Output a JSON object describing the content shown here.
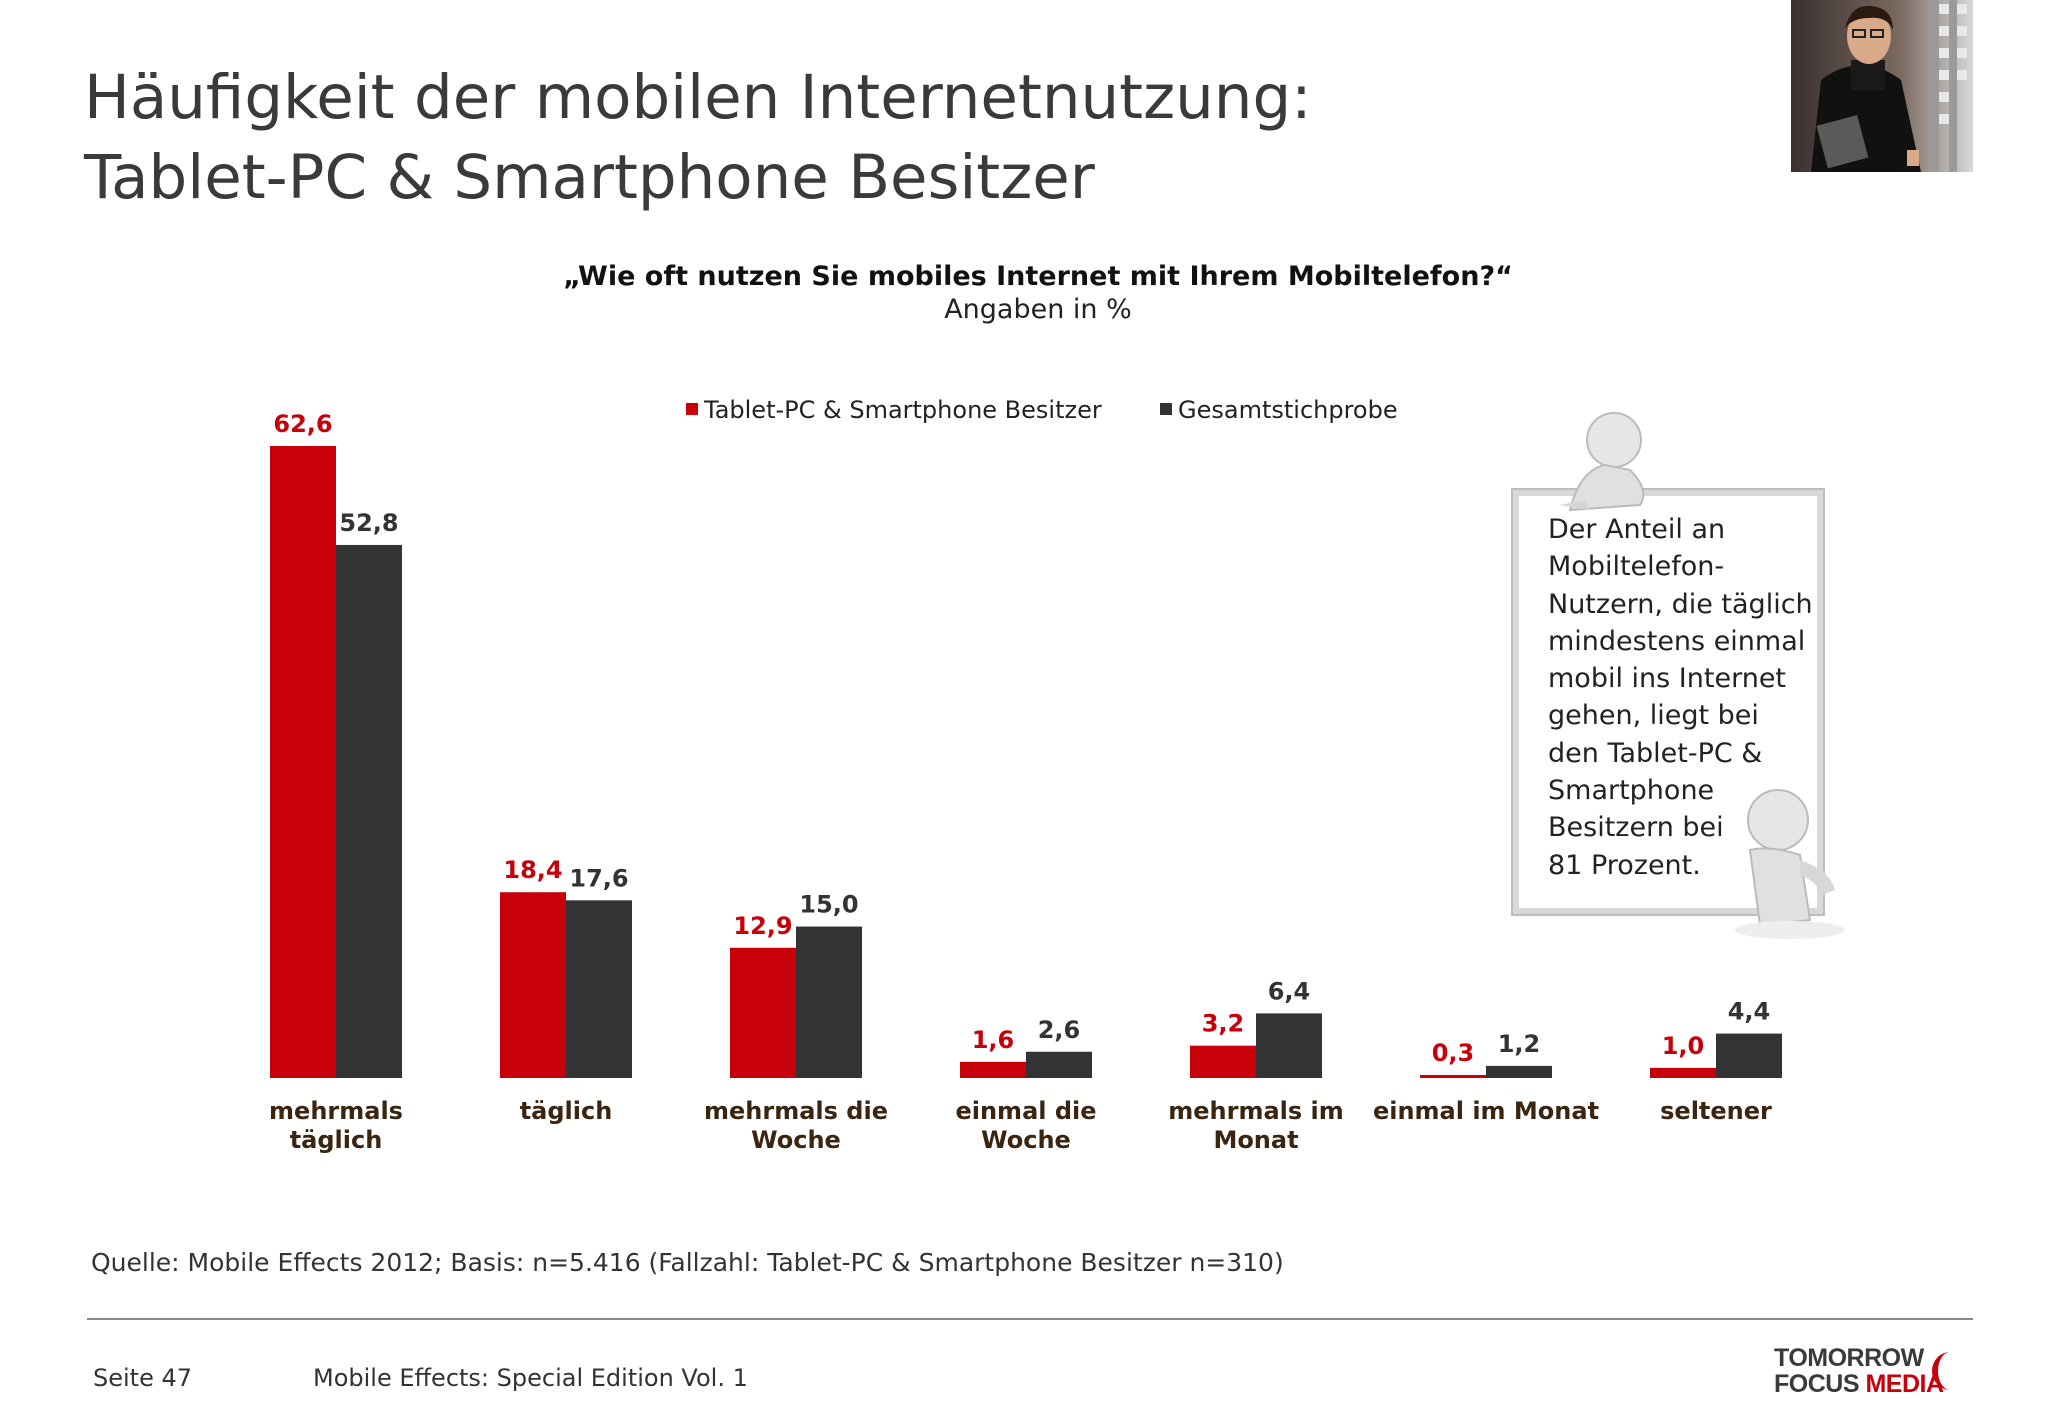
{
  "title": {
    "line1": "Häufigkeit der mobilen Internetnutzung:",
    "line2": "Tablet-PC & Smartphone Besitzer"
  },
  "question": "„Wie oft nutzen Sie mobiles Internet mit Ihrem Mobiltelefon?“",
  "unit_note": "Angaben in %",
  "chart_data": {
    "type": "bar",
    "categories": [
      [
        "mehrmals",
        "täglich"
      ],
      [
        "täglich"
      ],
      [
        "mehrmals die",
        "Woche"
      ],
      [
        "einmal die",
        "Woche"
      ],
      [
        "mehrmals im",
        "Monat"
      ],
      [
        "einmal im Monat"
      ],
      [
        "seltener"
      ]
    ],
    "series": [
      {
        "name": "Tablet-PC & Smartphone Besitzer",
        "values": [
          62.6,
          18.4,
          12.9,
          1.6,
          3.2,
          0.3,
          1.0
        ],
        "labels": [
          "62,6",
          "18,4",
          "12,9",
          "1,6",
          "3,2",
          "0,3",
          "1,0"
        ],
        "color": "#c8000a",
        "label_color": "#c8000a"
      },
      {
        "name": "Gesamtstichprobe",
        "values": [
          52.8,
          17.6,
          15.0,
          2.6,
          6.4,
          1.2,
          4.4
        ],
        "labels": [
          "52,8",
          "17,6",
          "15,0",
          "2,6",
          "6,4",
          "1,2",
          "4,4"
        ],
        "color": "#333336",
        "label_color": "#333333"
      }
    ],
    "ylim": [
      0,
      62.6
    ],
    "legend_position": "top-center",
    "grid": false,
    "category_label_color": "#3b2410"
  },
  "callout": {
    "lines": [
      "Der Anteil an",
      "Mobiltelefon-",
      "Nutzern, die täglich",
      "mindestens einmal",
      "mobil ins Internet",
      "gehen, liegt bei",
      "den Tablet-PC &",
      "Smartphone",
      "Besitzern bei",
      "81 Prozent."
    ]
  },
  "source": "Quelle: Mobile Effects 2012; Basis: n=5.416 (Fallzahl: Tablet-PC & Smartphone Besitzer n=310)",
  "footer": {
    "page": "Seite 47",
    "edition": "Mobile Effects: Special Edition Vol. 1",
    "logo_line1": "TOMORROW",
    "logo_line2a": "FOCUS ",
    "logo_line2b": "MEDIA"
  },
  "colors": {
    "accent": "#c8000a",
    "dark": "#333336"
  },
  "icons": {
    "photo": "man-with-tablet-photo",
    "figure": "3d-figure-icon",
    "logo": "tomorrow-focus-media-logo"
  }
}
